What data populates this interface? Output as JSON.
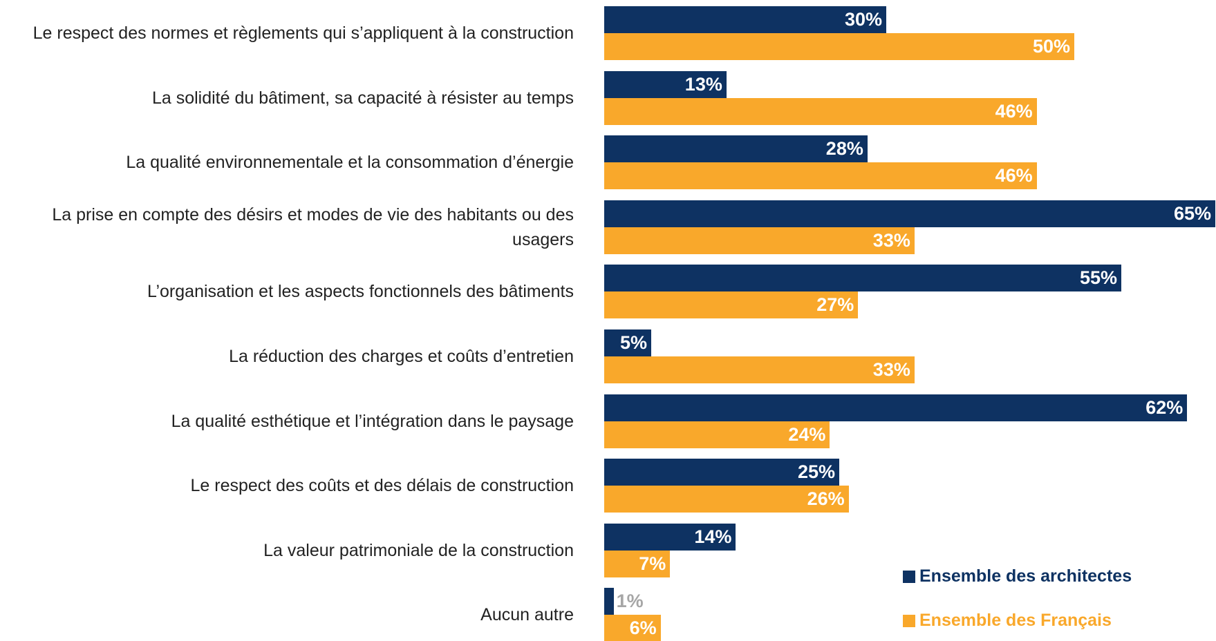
{
  "chart_data": {
    "type": "barh",
    "categories": [
      "Le respect des normes et règlements qui s’appliquent à la construction",
      "La solidité du bâtiment, sa capacité à résister au temps",
      "La qualité environnementale et la consommation d’énergie",
      "La prise en compte des désirs et modes de vie des habitants ou des usagers",
      "L’organisation et les aspects fonctionnels des bâtiments",
      "La réduction des charges et coûts d’entretien",
      "La qualité esthétique et l’intégration dans le paysage",
      "Le respect des coûts et des délais de construction",
      "La valeur patrimoniale de la construction",
      "Aucun autre"
    ],
    "series": [
      {
        "name": "Ensemble des architectes",
        "color": "#0e3262",
        "values": [
          30,
          13,
          28,
          65,
          55,
          5,
          62,
          25,
          14,
          1
        ],
        "value_labels": [
          "30%",
          "13%",
          "28%",
          "65%",
          "55%",
          "5%",
          "62%",
          "25%",
          "14%",
          "1%"
        ]
      },
      {
        "name": "Ensemble des Français",
        "color": "#f9a82b",
        "values": [
          50,
          46,
          46,
          33,
          27,
          33,
          24,
          26,
          7,
          6
        ],
        "value_labels": [
          "50%",
          "46%",
          "46%",
          "33%",
          "27%",
          "33%",
          "24%",
          "26%",
          "7%",
          "6%"
        ]
      }
    ],
    "legend": "lower right"
  }
}
